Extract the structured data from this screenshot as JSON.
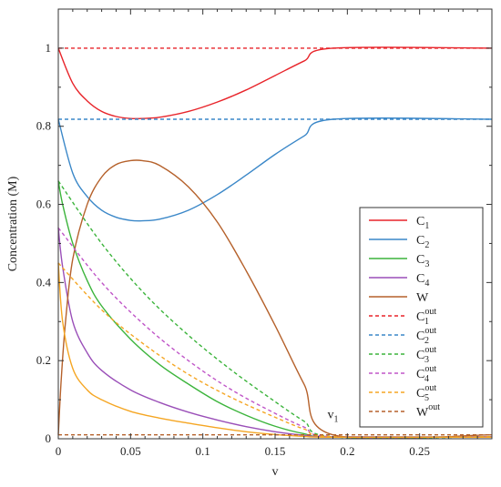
{
  "chart_data": {
    "type": "line",
    "xlabel": "v",
    "ylabel": "Concentration (M)",
    "xlim": [
      0,
      0.3
    ],
    "ylim": [
      0,
      1.1
    ],
    "xticks": [
      {
        "value": 0,
        "label": "0"
      },
      {
        "value": 0.05,
        "label": "0.05"
      },
      {
        "value": 0.1,
        "label": "0.1"
      },
      {
        "value": 0.15,
        "label": "0.15"
      },
      {
        "value": 0.2,
        "label": "0.2"
      },
      {
        "value": 0.25,
        "label": "0.25"
      }
    ],
    "yticks": [
      {
        "value": 0,
        "label": "0"
      },
      {
        "value": 0.2,
        "label": "0.2"
      },
      {
        "value": 0.4,
        "label": "0.4"
      },
      {
        "value": 0.6,
        "label": "0.6"
      },
      {
        "value": 0.8,
        "label": "0.8"
      },
      {
        "value": 1,
        "label": "1"
      }
    ],
    "grid": false,
    "legend_position": "right",
    "annotation": {
      "base": "v",
      "sub": "1",
      "x": 0.19,
      "y": 0.01
    },
    "series": [
      {
        "name": "C1",
        "base": "C",
        "sub": "1",
        "sup": "",
        "color": "#e8242a",
        "style": "solid",
        "x": [
          0,
          0.01,
          0.02,
          0.03,
          0.04,
          0.05,
          0.058,
          0.07,
          0.09,
          0.11,
          0.13,
          0.15,
          0.17,
          0.19,
          0.3
        ],
        "y": [
          1.0,
          0.91,
          0.865,
          0.838,
          0.825,
          0.82,
          0.82,
          0.823,
          0.838,
          0.862,
          0.893,
          0.93,
          0.967,
          1.0,
          1.0
        ]
      },
      {
        "name": "C2",
        "base": "C",
        "sub": "2",
        "sup": "",
        "color": "#3a87c8",
        "style": "solid",
        "x": [
          0,
          0.01,
          0.02,
          0.03,
          0.04,
          0.05,
          0.058,
          0.07,
          0.09,
          0.11,
          0.13,
          0.15,
          0.17,
          0.19,
          0.3
        ],
        "y": [
          0.818,
          0.68,
          0.62,
          0.585,
          0.567,
          0.559,
          0.558,
          0.562,
          0.585,
          0.625,
          0.675,
          0.728,
          0.775,
          0.818,
          0.818
        ]
      },
      {
        "name": "C3",
        "base": "C",
        "sub": "3",
        "sup": "",
        "color": "#3cb43c",
        "style": "solid",
        "x": [
          0,
          0.003,
          0.01,
          0.02,
          0.03,
          0.05,
          0.07,
          0.09,
          0.11,
          0.13,
          0.15,
          0.17,
          0.19,
          0.3
        ],
        "y": [
          0.66,
          0.6,
          0.5,
          0.405,
          0.34,
          0.255,
          0.19,
          0.14,
          0.095,
          0.06,
          0.032,
          0.013,
          0.005,
          0.005
        ]
      },
      {
        "name": "C4",
        "base": "C",
        "sub": "4",
        "sup": "",
        "color": "#9a4fb8",
        "style": "solid",
        "x": [
          0,
          0.003,
          0.01,
          0.02,
          0.03,
          0.05,
          0.07,
          0.09,
          0.11,
          0.13,
          0.15,
          0.17,
          0.19,
          0.3
        ],
        "y": [
          0.54,
          0.44,
          0.3,
          0.22,
          0.175,
          0.125,
          0.093,
          0.068,
          0.048,
          0.031,
          0.018,
          0.009,
          0.005,
          0.005
        ]
      },
      {
        "name": "W",
        "base": "W",
        "sub": "",
        "sup": "",
        "color": "#b5612b",
        "style": "solid",
        "x": [
          0,
          0.002,
          0.005,
          0.01,
          0.02,
          0.03,
          0.04,
          0.05,
          0.058,
          0.07,
          0.09,
          0.11,
          0.13,
          0.15,
          0.17,
          0.19,
          0.3
        ],
        "y": [
          0.01,
          0.15,
          0.3,
          0.46,
          0.6,
          0.67,
          0.702,
          0.712,
          0.712,
          0.7,
          0.645,
          0.555,
          0.43,
          0.29,
          0.14,
          0.01,
          0.01
        ]
      },
      {
        "name": "C1out",
        "base": "C",
        "sub": "1",
        "sup": "out",
        "color": "#e8242a",
        "style": "dashed",
        "x": [
          0,
          0.3
        ],
        "y": [
          1.0,
          1.0
        ]
      },
      {
        "name": "C2out",
        "base": "C",
        "sub": "2",
        "sup": "out",
        "color": "#3a87c8",
        "style": "dashed",
        "x": [
          0,
          0.3
        ],
        "y": [
          0.818,
          0.818
        ]
      },
      {
        "name": "C3out",
        "base": "C",
        "sub": "3",
        "sup": "out",
        "color": "#3cb43c",
        "style": "dashed",
        "x": [
          0,
          0.03,
          0.06,
          0.09,
          0.12,
          0.15,
          0.17,
          0.19,
          0.3
        ],
        "y": [
          0.66,
          0.5,
          0.37,
          0.265,
          0.175,
          0.095,
          0.045,
          0.005,
          0.005
        ]
      },
      {
        "name": "C4out",
        "base": "C",
        "sub": "4",
        "sup": "out",
        "color": "#c056c8",
        "style": "dashed",
        "x": [
          0,
          0.03,
          0.06,
          0.09,
          0.12,
          0.15,
          0.17,
          0.19,
          0.3
        ],
        "y": [
          0.54,
          0.4,
          0.29,
          0.2,
          0.125,
          0.065,
          0.03,
          0.005,
          0.005
        ]
      },
      {
        "name": "C5out",
        "base": "C",
        "sub": "5",
        "sup": "out",
        "color": "#f5a623",
        "style": "dashed",
        "x": [
          0,
          0.03,
          0.06,
          0.09,
          0.12,
          0.15,
          0.17,
          0.19,
          0.3
        ],
        "y": [
          0.45,
          0.33,
          0.24,
          0.165,
          0.105,
          0.055,
          0.025,
          0.005,
          0.005
        ]
      },
      {
        "name": "C5",
        "base": "C",
        "sub": "5",
        "sup": "",
        "color": "#f5a623",
        "style": "solid",
        "in_legend": false,
        "x": [
          0,
          0.003,
          0.01,
          0.02,
          0.03,
          0.05,
          0.07,
          0.09,
          0.11,
          0.13,
          0.15,
          0.17,
          0.19,
          0.3
        ],
        "y": [
          0.45,
          0.3,
          0.18,
          0.125,
          0.1,
          0.07,
          0.053,
          0.04,
          0.028,
          0.018,
          0.011,
          0.006,
          0.004,
          0.004
        ]
      },
      {
        "name": "Wout",
        "base": "W",
        "sub": "",
        "sup": "out",
        "color": "#b5612b",
        "style": "dashed",
        "x": [
          0,
          0.3
        ],
        "y": [
          0.01,
          0.01
        ]
      }
    ]
  }
}
